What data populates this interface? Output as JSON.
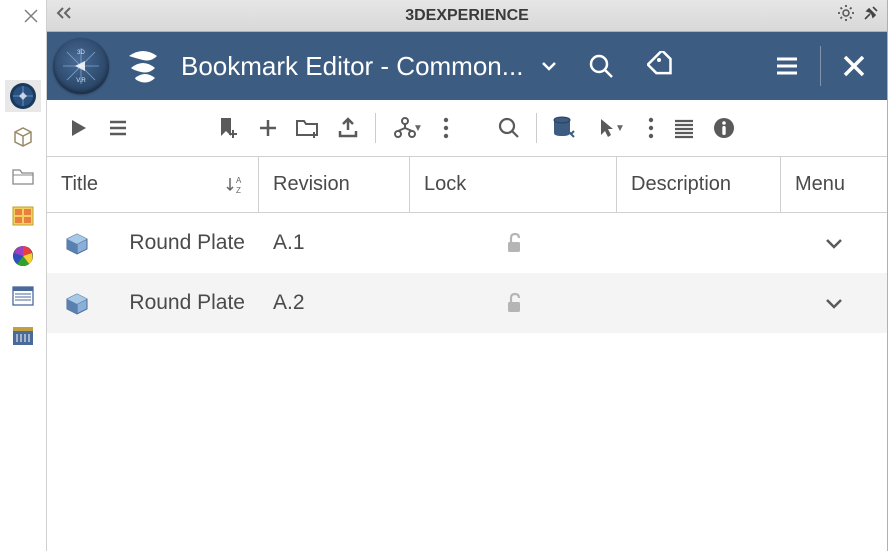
{
  "os_title": "3DEXPERIENCE",
  "appbar": {
    "title": "Bookmark Editor - Common..."
  },
  "columns": {
    "title": "Title",
    "revision": "Revision",
    "lock": "Lock",
    "description": "Description",
    "menu": "Menu",
    "sort_az": "A↓Z"
  },
  "rows": [
    {
      "title": "Round Plate",
      "revision": "A.1",
      "lock": "unlocked",
      "description": ""
    },
    {
      "title": "Round Plate",
      "revision": "A.2",
      "lock": "unlocked",
      "description": ""
    }
  ],
  "colors": {
    "appbar_bg": "#3d5c82",
    "text_gray": "#4a4a4a",
    "border": "#d0d0d0"
  }
}
